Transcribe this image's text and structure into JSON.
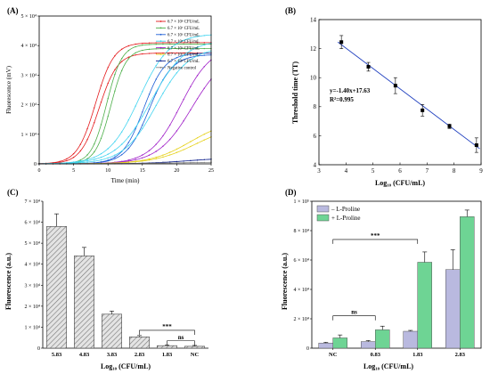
{
  "chart_data": [
    {
      "panel": "(A)",
      "type": "line",
      "xlabel": "Time (min)",
      "ylabel": "Fluorescence (mV)",
      "xlim": [
        0,
        25
      ],
      "ylim": [
        0,
        50000
      ],
      "xticks": [
        0,
        5,
        10,
        15,
        20,
        25
      ],
      "yticks": [
        0,
        10000,
        20000,
        30000,
        40000,
        50000
      ],
      "ytick_labels": [
        "0",
        "1 × 10⁴",
        "2 × 10⁴",
        "3 × 10⁴",
        "4 × 10⁴",
        "5 × 10⁴"
      ],
      "legend_position": "top-right",
      "series": [
        {
          "name": "6.7 × 10⁸ CFU/mL",
          "color": "#e41a1c",
          "replicates": [
            {
              "plateau": 41000,
              "midpoint": 8.2,
              "k": 0.75
            },
            {
              "plateau": 37500,
              "midpoint": 8.7,
              "k": 0.75
            }
          ]
        },
        {
          "name": "6.7 × 10⁷ CFU/mL",
          "color": "#4daf4a",
          "replicates": [
            {
              "plateau": 40500,
              "midpoint": 9.8,
              "k": 0.9
            },
            {
              "plateau": 39000,
              "midpoint": 10.4,
              "k": 0.9
            }
          ]
        },
        {
          "name": "6.7 × 10⁶ CFU/mL",
          "color": "#1f5fd6",
          "replicates": [
            {
              "plateau": 37500,
              "midpoint": 15.2,
              "k": 0.65
            },
            {
              "plateau": 37000,
              "midpoint": 16.0,
              "k": 0.6
            }
          ]
        },
        {
          "name": "6.7 × 10⁵ CFU/mL",
          "color": "#42d4f0",
          "replicates": [
            {
              "plateau": 44000,
              "midpoint": 14.5,
              "k": 0.45
            },
            {
              "plateau": 42000,
              "midpoint": 16.2,
              "k": 0.4
            },
            {
              "plateau": 39500,
              "midpoint": 17.0,
              "k": 0.42
            }
          ]
        },
        {
          "name": "6.7 × 10⁴ CFU/mL",
          "color": "#a020c8",
          "replicates": [
            {
              "plateau": 40000,
              "midpoint": 20.6,
              "k": 0.45
            },
            {
              "plateau": 38000,
              "midpoint": 22.2,
              "k": 0.4
            }
          ]
        },
        {
          "name": "6.7 × 10³ CFU/mL",
          "color": "#e6d21e",
          "replicates": [
            {
              "plateau": 15000,
              "midpoint": 22.0,
              "k": 0.35
            },
            {
              "plateau": 13500,
              "midpoint": 22.8,
              "k": 0.33
            }
          ]
        },
        {
          "name": "6.7 × 10² CFU/mL",
          "color": "#0d1f8c",
          "replicates": [
            {
              "plateau": 2200,
              "midpoint": 22.0,
              "k": 0.3
            }
          ]
        },
        {
          "name": "Negative control",
          "color": "#888888",
          "replicates": [
            {
              "plateau": 700,
              "midpoint": 20.0,
              "k": 0.2
            }
          ]
        }
      ]
    },
    {
      "panel": "(B)",
      "type": "scatter",
      "xlabel": "Log₁₀ (CFU/mL)",
      "ylabel": "Threshold time (TT)",
      "xlim": [
        3,
        9
      ],
      "ylim": [
        4,
        14
      ],
      "xticks": [
        3,
        4,
        5,
        6,
        7,
        8,
        9
      ],
      "yticks": [
        4,
        6,
        8,
        10,
        12,
        14
      ],
      "points": [
        {
          "x": 3.83,
          "y": 12.45,
          "err": 0.45
        },
        {
          "x": 4.83,
          "y": 10.75,
          "err": 0.3
        },
        {
          "x": 5.83,
          "y": 9.45,
          "err": 0.55
        },
        {
          "x": 6.83,
          "y": 7.75,
          "err": 0.4
        },
        {
          "x": 7.83,
          "y": 6.65,
          "err": 0.15
        },
        {
          "x": 8.83,
          "y": 5.35,
          "err": 0.5
        }
      ],
      "fit": {
        "slope": -1.4,
        "intercept": 17.63
      },
      "annotation_equation": "y=-1.40x+17.63",
      "annotation_r2": "R²=0.995"
    },
    {
      "panel": "(C)",
      "type": "bar",
      "xlabel": "Log₁₀ (CFU/mL)",
      "ylabel": "Fluorescence (a.u.)",
      "ylim": [
        0,
        70000
      ],
      "yticks": [
        0,
        10000,
        20000,
        30000,
        40000,
        50000,
        60000,
        70000
      ],
      "ytick_labels": [
        "0",
        "1 × 10⁴",
        "2 × 10⁴",
        "3 × 10⁴",
        "4 × 10⁴",
        "5 × 10⁴",
        "6 × 10⁴",
        "7 × 10⁴"
      ],
      "categories": [
        "5.83",
        "4.83",
        "3.83",
        "2.83",
        "1.83",
        "NC"
      ],
      "values": [
        58000,
        44000,
        16200,
        5400,
        1200,
        900
      ],
      "errors": [
        6000,
        4000,
        1500,
        600,
        300,
        400
      ],
      "significance": [
        {
          "from": 3,
          "to": 5,
          "label": "***",
          "level": 8500
        },
        {
          "from": 4,
          "to": 5,
          "label": "ns",
          "level": 3500
        }
      ]
    },
    {
      "panel": "(D)",
      "type": "bar",
      "xlabel": "Log₁₀ (CFU/mL)",
      "ylabel": "Fluorescence (a.u.)",
      "ylim": [
        0,
        100000
      ],
      "yticks": [
        0,
        20000,
        40000,
        60000,
        80000,
        100000
      ],
      "ytick_labels": [
        "0",
        "2 × 10⁴",
        "4 × 10⁴",
        "6 × 10⁴",
        "8 × 10⁴",
        "1 × 10⁵"
      ],
      "categories": [
        "NC",
        "0.83",
        "1.83",
        "2.83"
      ],
      "legend_position": "top-left",
      "series": [
        {
          "name": "– L-Proline",
          "color": "#b9b9df",
          "values": [
            3500,
            4500,
            11500,
            53500
          ],
          "errors": [
            500,
            700,
            600,
            13500
          ]
        },
        {
          "name": "+ L-Proline",
          "color": "#6ed494",
          "values": [
            7000,
            12500,
            58500,
            89500
          ],
          "errors": [
            2000,
            2500,
            7000,
            4500
          ]
        }
      ],
      "significance": [
        {
          "from": 0,
          "to": 2,
          "label": "***",
          "level": 74000
        },
        {
          "from": 0,
          "to": 1,
          "label": "ns",
          "level": 22000
        }
      ]
    }
  ]
}
